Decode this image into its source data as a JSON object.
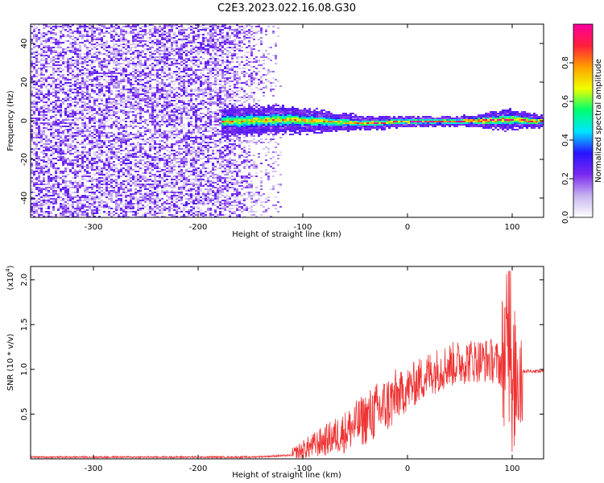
{
  "figure": {
    "title": "C2E3.2023.022.16.08.G30"
  },
  "chart_data": [
    {
      "type": "heatmap",
      "xlabel": "Height of straight line (km)",
      "ylabel": "Frequency (Hz)",
      "xlim": [
        -360,
        130
      ],
      "ylim": [
        -50,
        50
      ],
      "xticks": [
        -300,
        -200,
        -100,
        0,
        100
      ],
      "yticks": [
        -40,
        -20,
        0,
        20,
        40
      ],
      "colorbar": {
        "label": "Normalized spectral amplitude",
        "range": [
          0,
          1
        ],
        "ticks": [
          0.0,
          0.2,
          0.4,
          0.6,
          0.8
        ],
        "colormap": [
          "#ffffff",
          "#c8b4f0",
          "#7a28f0",
          "#2814ff",
          "#00e6ff",
          "#00ff6e",
          "#f0ff00",
          "#ffa000",
          "#ff1e3c",
          "#ff00a0"
        ]
      },
      "features": {
        "noise_region_x": [
          -360,
          -120
        ],
        "signal_band": [
          {
            "x": -175,
            "center": 0,
            "halfwidth": 4
          },
          {
            "x": -120,
            "center": 1,
            "halfwidth": 4
          },
          {
            "x": -80,
            "center": 0,
            "halfwidth": 3
          },
          {
            "x": -40,
            "center": -1,
            "halfwidth": 2
          },
          {
            "x": 0,
            "center": 0,
            "halfwidth": 1.5
          },
          {
            "x": 50,
            "center": 0,
            "halfwidth": 1.5
          },
          {
            "x": 95,
            "center": 1,
            "halfwidth": 3
          },
          {
            "x": 130,
            "center": 0,
            "halfwidth": 1.5
          }
        ]
      }
    },
    {
      "type": "line",
      "xlabel": "Height of straight line (km)",
      "ylabel": "SNR (10 * v/v)",
      "yscale_label": "(x10",
      "yscale_exp": "4",
      "yscale_close": ")",
      "xlim": [
        -360,
        130
      ],
      "ylim": [
        0,
        2.15
      ],
      "xticks": [
        -300,
        -200,
        -100,
        0,
        100
      ],
      "yticks": [
        0.5,
        1.0,
        1.5,
        2.0
      ],
      "ytick_labels": [
        "0.5",
        "1.0",
        "1.5",
        "2.0"
      ],
      "color": "#ee3333",
      "series": [
        {
          "x": [
            -360,
            -300,
            -250,
            -200,
            -150,
            -110,
            -100,
            -80,
            -60,
            -40,
            -20,
            0,
            20,
            40,
            60,
            80,
            90,
            95,
            100,
            105,
            110,
            130
          ],
          "values": [
            0.02,
            0.02,
            0.02,
            0.02,
            0.02,
            0.04,
            0.1,
            0.2,
            0.3,
            0.45,
            0.6,
            0.78,
            0.95,
            1.05,
            1.1,
            1.1,
            1.05,
            1.3,
            0.8,
            1.0,
            0.98,
            0.98
          ]
        }
      ]
    }
  ]
}
